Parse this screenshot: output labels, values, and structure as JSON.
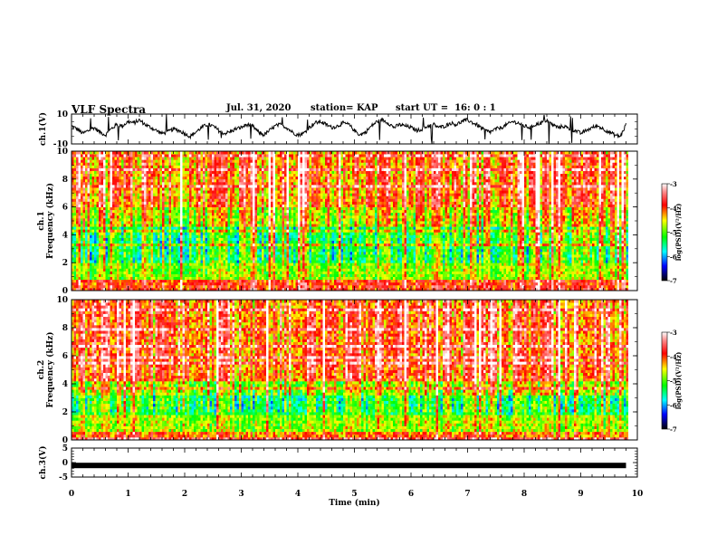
{
  "header": {
    "title": "VLF Spectra",
    "date": "Jul. 31, 2020",
    "station": "station= KAP",
    "start": "start UT =  16: 0 : 1"
  },
  "chart_data": [
    {
      "type": "line",
      "panel": "ch1-waveform",
      "ylabel": "ch.1(V)",
      "ylim": [
        -10,
        10
      ],
      "yticks": [
        "10",
        "-10"
      ],
      "xlim": [
        0,
        10
      ],
      "data_end_min": 9.8,
      "series": [
        {
          "x": [
            0,
            0.1,
            0.2,
            0.3,
            0.4,
            0.5,
            0.6,
            0.7,
            0.8,
            0.9,
            1.0,
            1.1,
            1.2,
            1.3,
            1.4,
            1.5,
            1.6,
            1.7,
            1.8,
            1.9,
            2.0,
            2.1,
            2.2,
            2.3,
            2.4,
            2.5,
            2.6,
            2.7,
            2.8,
            2.9,
            3.0,
            3.1,
            3.2,
            3.3,
            3.4,
            3.5,
            3.6,
            3.7,
            3.8,
            3.9,
            4.0,
            4.1,
            4.2,
            4.3,
            4.4,
            4.5,
            4.6,
            4.7,
            4.8,
            4.9,
            5.0,
            5.1,
            5.2,
            5.3,
            5.4,
            5.5,
            5.6,
            5.7,
            5.8,
            5.9,
            6.0,
            6.1,
            6.2,
            6.3,
            6.4,
            6.5,
            6.6,
            6.7,
            6.8,
            6.9,
            7.0,
            7.1,
            7.2,
            7.3,
            7.4,
            7.5,
            7.6,
            7.7,
            7.8,
            7.9,
            8.0,
            8.1,
            8.2,
            8.3,
            8.4,
            8.5,
            8.6,
            8.7,
            8.8,
            8.9,
            9.0,
            9.1,
            9.2,
            9.3,
            9.4,
            9.5,
            9.6,
            9.7,
            9.8
          ],
          "y": [
            2,
            0,
            -3,
            -1,
            1,
            -2,
            -4,
            0,
            3,
            2,
            5,
            4,
            6,
            3,
            1,
            -1,
            -3,
            -2,
            0,
            -1,
            -3,
            -5,
            -2,
            1,
            3,
            2,
            -1,
            -3,
            -2,
            0,
            1,
            3,
            2,
            -2,
            -4,
            -1,
            2,
            3,
            1,
            -2,
            -4,
            -3,
            1,
            4,
            5,
            3,
            1,
            2,
            4,
            3,
            -1,
            -4,
            -2,
            2,
            5,
            6,
            4,
            1,
            3,
            2,
            1,
            -1,
            0,
            2,
            3,
            1,
            2,
            4,
            3,
            5,
            6,
            4,
            2,
            -1,
            -2,
            0,
            1,
            3,
            5,
            4,
            2,
            1,
            3,
            4,
            6,
            3,
            1,
            2,
            0,
            -1,
            -3,
            -1,
            1,
            2,
            0,
            -2,
            -4,
            -5,
            3
          ]
        }
      ]
    },
    {
      "type": "heatmap",
      "panel": "ch1-spectrogram",
      "ylabel": "ch.1\nFrequency (kHz)",
      "ylim": [
        0,
        10
      ],
      "yticks": [
        "0",
        "2",
        "4",
        "6",
        "8",
        "10"
      ],
      "xlim": [
        0,
        10
      ],
      "colorbar": {
        "label": "log(PSD)(V²/Hz)",
        "range": [
          -7,
          -3
        ],
        "ticks": [
          "-3",
          "-4",
          "-5",
          "-6",
          "-7"
        ]
      }
    },
    {
      "type": "heatmap",
      "panel": "ch2-spectrogram",
      "ylabel": "ch.2\nFrequency (kHz)",
      "ylim": [
        0,
        10
      ],
      "yticks": [
        "0",
        "2",
        "4",
        "6",
        "8",
        "10"
      ],
      "xlim": [
        0,
        10
      ],
      "colorbar": {
        "label": "log(PSD)(V²/Hz)",
        "range": [
          -7,
          -3
        ],
        "ticks": [
          "-3",
          "-4",
          "-5",
          "-6",
          "-7"
        ]
      }
    },
    {
      "type": "line",
      "panel": "ch3-waveform",
      "ylabel": "ch.3(V)",
      "ylim": [
        -5,
        5
      ],
      "yticks": [
        "5",
        "0",
        "-5"
      ],
      "xlim": [
        0,
        10
      ],
      "series": [
        {
          "x": [
            0,
            9.8
          ],
          "y": [
            -1,
            -1
          ]
        }
      ]
    }
  ],
  "xaxis": {
    "label": "Time (min)",
    "ticks": [
      "0",
      "1",
      "2",
      "3",
      "4",
      "5",
      "6",
      "7",
      "8",
      "9",
      "10"
    ]
  },
  "colors": {
    "axis": "#000000",
    "trace": "#000000"
  }
}
